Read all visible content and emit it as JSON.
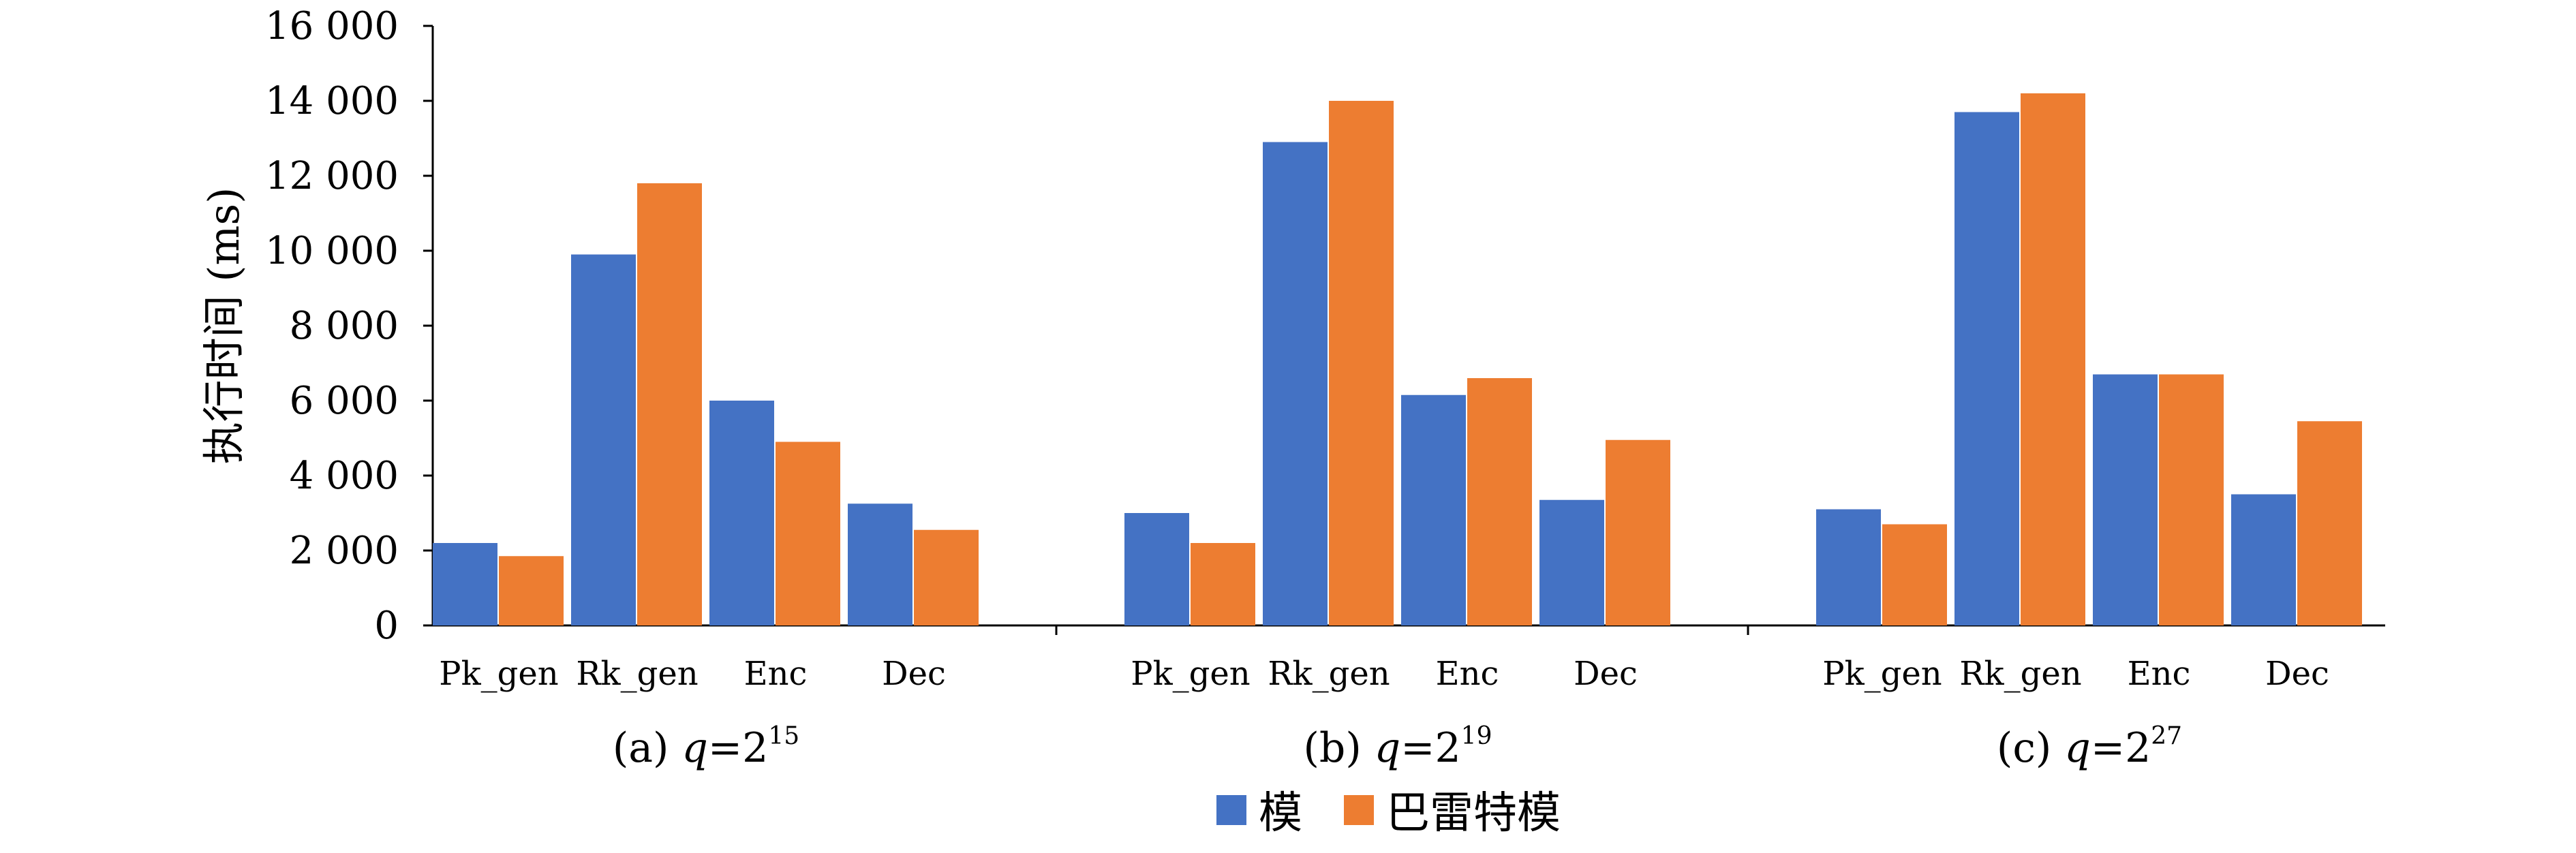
{
  "chart_data": {
    "type": "bar",
    "ylabel": "执行时间 (ms)",
    "ylim": [
      0,
      16000
    ],
    "yticks": [
      0,
      2000,
      4000,
      6000,
      8000,
      10000,
      12000,
      14000,
      16000
    ],
    "ytick_labels": [
      "0",
      "2 000",
      "4 000",
      "6 000",
      "8 000",
      "10 000",
      "12 000",
      "14 000",
      "16 000"
    ],
    "categories": [
      "Pk_gen",
      "Rk_gen",
      "Enc",
      "Dec"
    ],
    "groups": [
      {
        "caption_prefix": "(a) ",
        "caption_var": "q",
        "caption_eq": "=2",
        "caption_exp": "15",
        "series": [
          {
            "name": "模",
            "values": [
              2200,
              9900,
              6000,
              3250
            ]
          },
          {
            "name": "巴雷特模",
            "values": [
              1850,
              11800,
              4900,
              2550
            ]
          }
        ]
      },
      {
        "caption_prefix": "(b) ",
        "caption_var": "q",
        "caption_eq": "=2",
        "caption_exp": "19",
        "series": [
          {
            "name": "模",
            "values": [
              3000,
              12900,
              6150,
              3350
            ]
          },
          {
            "name": "巴雷特模",
            "values": [
              2200,
              14000,
              6600,
              4950
            ]
          }
        ]
      },
      {
        "caption_prefix": "(c) ",
        "caption_var": "q",
        "caption_eq": "=2",
        "caption_exp": "27",
        "series": [
          {
            "name": "模",
            "values": [
              3100,
              13700,
              6700,
              3500
            ]
          },
          {
            "name": "巴雷特模",
            "values": [
              2700,
              14200,
              6700,
              5450
            ]
          }
        ]
      }
    ],
    "legend": [
      {
        "name": "模",
        "color": "#4472C4"
      },
      {
        "name": "巴雷特模",
        "color": "#ED7D31"
      }
    ],
    "legend_position": "bottom-center",
    "grid": false
  }
}
